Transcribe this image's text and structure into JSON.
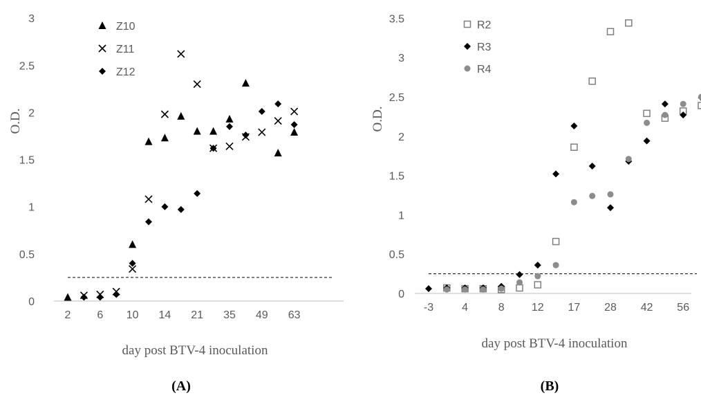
{
  "chart_data": [
    {
      "type": "scatter",
      "panel_label": "(A)",
      "xlabel": "day post BTV-4 inoculation",
      "ylabel": "O.D.",
      "ylim": [
        0,
        3
      ],
      "yticks": [
        "0",
        "0.5",
        "1",
        "1.5",
        "2",
        "2.5",
        "3"
      ],
      "x_tick_labels": [
        "2",
        "6",
        "10",
        "14",
        "21",
        "35",
        "49",
        "63"
      ],
      "x": [
        "2",
        "4",
        "6",
        "8",
        "10",
        "12",
        "14",
        "17",
        "21",
        "28",
        "35",
        "42",
        "49",
        "56",
        "63"
      ],
      "threshold": 0.25,
      "grid": false,
      "legend_position": "top-left",
      "series": [
        {
          "name": "Z10",
          "marker": "triangle",
          "color": "#000000",
          "values": [
            0.04,
            null,
            null,
            null,
            0.6,
            1.69,
            1.73,
            1.96,
            1.8,
            1.8,
            1.93,
            2.31,
            null,
            1.57,
            1.79
          ]
        },
        {
          "name": "Z11",
          "marker": "cross",
          "color": "#000000",
          "values": [
            null,
            0.06,
            0.07,
            0.1,
            0.34,
            1.08,
            1.98,
            2.62,
            2.3,
            1.62,
            1.64,
            1.74,
            1.79,
            1.91,
            2.01
          ]
        },
        {
          "name": "Z12",
          "marker": "diamond",
          "color": "#000000",
          "values": [
            null,
            0.04,
            0.04,
            0.07,
            0.4,
            0.84,
            1.0,
            0.97,
            1.14,
            1.62,
            1.85,
            1.76,
            2.01,
            2.09,
            1.87
          ]
        }
      ]
    },
    {
      "type": "scatter",
      "panel_label": "(B)",
      "xlabel": "day post BTV-4 inoculation",
      "ylabel": "O.D.",
      "ylim": [
        0,
        3.5
      ],
      "yticks": [
        "0",
        "0.5",
        "1",
        "1.5",
        "2",
        "2.5",
        "3",
        "3.5"
      ],
      "x_tick_labels": [
        "-3",
        "4",
        "8",
        "12",
        "17",
        "28",
        "42",
        "56"
      ],
      "x": [
        "-3",
        "0",
        "4",
        "6",
        "8",
        "10",
        "12",
        "14",
        "17",
        "21",
        "28",
        "35",
        "42",
        "49",
        "56",
        "63"
      ],
      "threshold": 0.25,
      "grid": false,
      "legend_position": "top-left",
      "series": [
        {
          "name": "R2",
          "marker": "open-square",
          "color": "#7f7f7f",
          "values": [
            null,
            0.07,
            0.06,
            0.06,
            0.05,
            0.07,
            0.11,
            0.66,
            1.86,
            2.7,
            3.33,
            3.44,
            2.29,
            2.23,
            2.32,
            2.39
          ]
        },
        {
          "name": "R3",
          "marker": "diamond",
          "color": "#000000",
          "values": [
            0.06,
            0.07,
            0.07,
            0.07,
            0.09,
            0.24,
            0.36,
            1.52,
            2.13,
            1.62,
            1.09,
            1.68,
            1.94,
            2.41,
            2.27,
            2.49
          ]
        },
        {
          "name": "R4",
          "marker": "circle",
          "color": "#8c8c8c",
          "values": [
            null,
            0.05,
            0.05,
            0.05,
            0.06,
            0.14,
            0.22,
            0.36,
            1.16,
            1.24,
            1.26,
            1.71,
            2.17,
            2.27,
            2.41,
            2.5
          ]
        }
      ]
    }
  ]
}
